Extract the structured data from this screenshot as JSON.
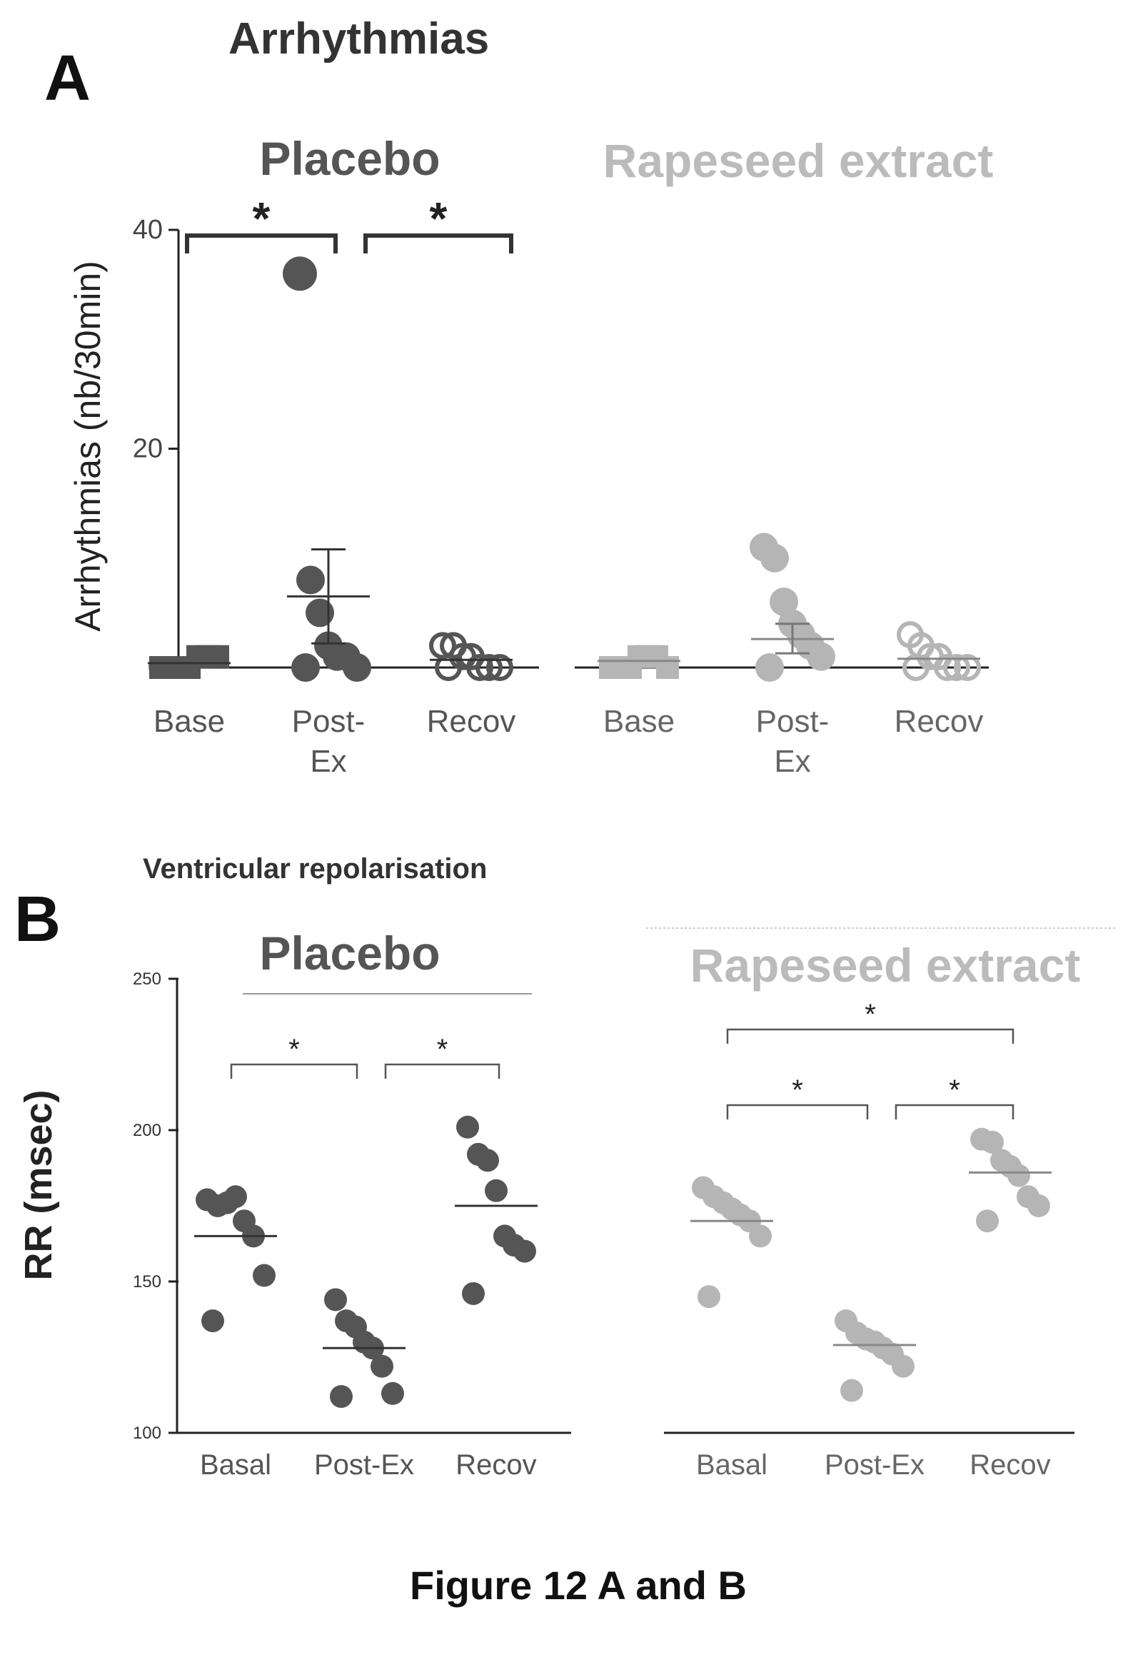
{
  "colors": {
    "placebo": "#555555",
    "rapeseed": "#b5b5b5",
    "axis": "#222222",
    "text": "#222222"
  },
  "figure_caption": "Figure 12 A and B",
  "chart_data": [
    {
      "type": "scatter",
      "panel_label": "A",
      "title": "Arrhythmias",
      "ylabel": "Arrhythmias (nb/30min)",
      "ylim": [
        0,
        40
      ],
      "yticks": [
        0,
        20,
        40
      ],
      "groups": [
        {
          "name": "Placebo",
          "categories": [
            "Base",
            "Post-\nEx",
            "Recov"
          ],
          "series": [
            {
              "category": "Base",
              "marker": "filled-square",
              "values": [
                0,
                0,
                0,
                0,
                1,
                1,
                1,
                0
              ],
              "mean": 0.4
            },
            {
              "category": "Post-Ex",
              "marker": "filled-circle",
              "values": [
                36,
                8,
                5,
                2,
                1,
                1,
                0,
                0
              ],
              "mean": 6.5,
              "error": [
                2.2,
                10.8
              ]
            },
            {
              "category": "Recov",
              "marker": "open-circle",
              "values": [
                2,
                2,
                1,
                1,
                0,
                0,
                0,
                0
              ],
              "mean": 0.7
            }
          ],
          "significance": [
            {
              "from": "Base",
              "to": "Post-Ex",
              "label": "*"
            },
            {
              "from": "Post-Ex",
              "to": "Recov",
              "label": "*"
            }
          ]
        },
        {
          "name": "Rapeseed extract",
          "categories": [
            "Base",
            "Post-\nEx",
            "Recov"
          ],
          "series": [
            {
              "category": "Base",
              "marker": "filled-square",
              "values": [
                0,
                0,
                0,
                1,
                1,
                1,
                0,
                0
              ],
              "mean": 0.6
            },
            {
              "category": "Post-Ex",
              "marker": "filled-circle",
              "values": [
                11,
                10,
                6,
                4,
                3,
                2,
                1,
                0
              ],
              "mean": 2.6,
              "error": [
                1.3,
                4.0
              ]
            },
            {
              "category": "Recov",
              "marker": "open-circle",
              "values": [
                3,
                2,
                1,
                1,
                0,
                0,
                0,
                0
              ],
              "mean": 0.8
            }
          ],
          "significance": []
        }
      ]
    },
    {
      "type": "scatter",
      "panel_label": "B",
      "title": "Ventricular  repolarisation",
      "ylabel": "RR (msec)",
      "ylim": [
        100,
        250
      ],
      "yticks": [
        100,
        150,
        200,
        250
      ],
      "groups": [
        {
          "name": "Placebo",
          "categories": [
            "Basal",
            "Post-Ex",
            "Recov"
          ],
          "series": [
            {
              "category": "Basal",
              "values": [
                177,
                175,
                176,
                178,
                170,
                165,
                152,
                137
              ],
              "mean": 165
            },
            {
              "category": "Post-Ex",
              "values": [
                144,
                137,
                135,
                130,
                128,
                122,
                113,
                112
              ],
              "mean": 128
            },
            {
              "category": "Recov",
              "values": [
                201,
                192,
                190,
                180,
                165,
                162,
                160,
                146
              ],
              "mean": 175
            }
          ],
          "significance": [
            {
              "from": "Basal",
              "to": "Post-Ex",
              "label": "*",
              "level": 1
            },
            {
              "from": "Post-Ex",
              "to": "Recov",
              "label": "*",
              "level": 1
            }
          ]
        },
        {
          "name": "Rapeseed extract",
          "categories": [
            "Basal",
            "Post-Ex",
            "Recov"
          ],
          "series": [
            {
              "category": "Basal",
              "values": [
                181,
                178,
                176,
                174,
                172,
                170,
                165,
                145
              ],
              "mean": 170
            },
            {
              "category": "Post-Ex",
              "values": [
                137,
                133,
                131,
                130,
                128,
                126,
                122,
                114
              ],
              "mean": 129
            },
            {
              "category": "Recov",
              "values": [
                197,
                196,
                190,
                188,
                185,
                178,
                175,
                170
              ],
              "mean": 186
            }
          ],
          "significance": [
            {
              "from": "Basal",
              "to": "Post-Ex",
              "label": "*",
              "level": 1
            },
            {
              "from": "Post-Ex",
              "to": "Recov",
              "label": "*",
              "level": 1
            },
            {
              "from": "Basal",
              "to": "Recov",
              "label": "*",
              "level": 2
            }
          ]
        }
      ]
    }
  ]
}
